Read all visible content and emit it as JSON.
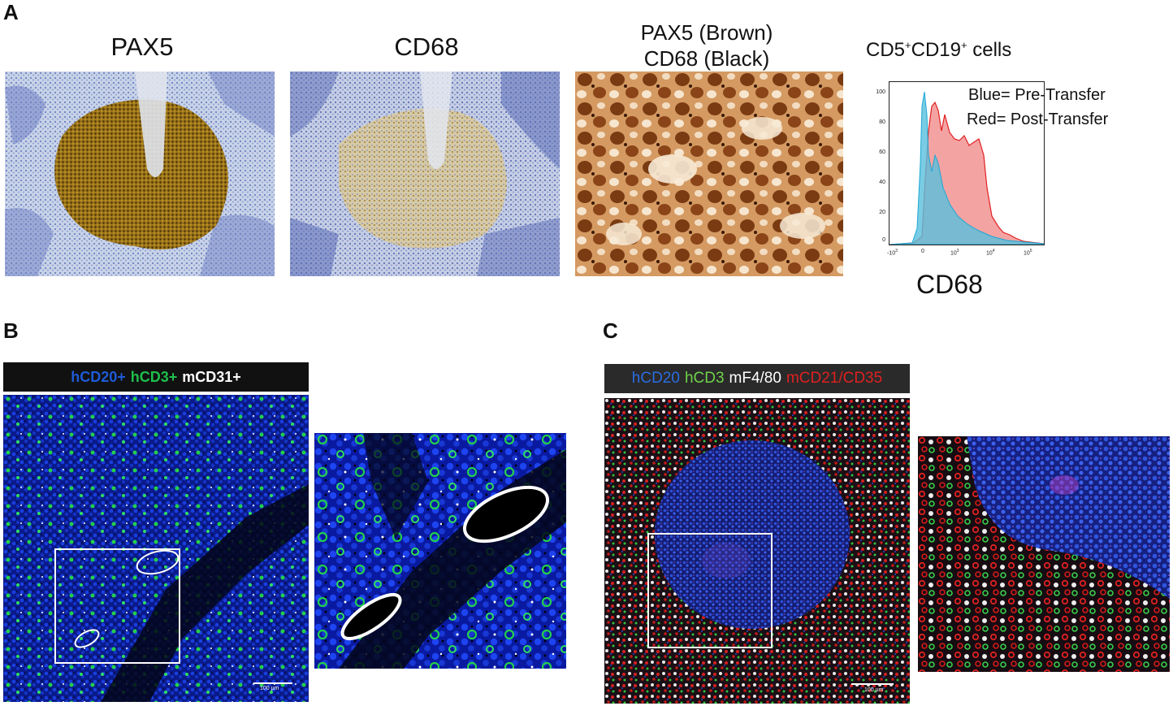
{
  "panels": {
    "a": {
      "letter": "A",
      "titles": {
        "pax5": "PAX5",
        "cd68": "CD68",
        "dual_line1": "PAX5 (Brown)",
        "dual_line2": "CD68 (Black)"
      },
      "flow": {
        "title_main": "CD5",
        "title_sup1": "+",
        "title_mid": "CD19",
        "title_sup2": "+",
        "title_tail": " cells",
        "legend_blue": "Blue= Pre-Transfer",
        "legend_red": "Red= Post-Transfer",
        "xlabel": "CD68",
        "y_ticks": [
          "100",
          "80",
          "60",
          "40",
          "20",
          "0"
        ],
        "x_ticks": [
          {
            "base": "-10",
            "exp": "3"
          },
          {
            "base": "0",
            "exp": ""
          },
          {
            "base": "10",
            "exp": "3"
          },
          {
            "base": "10",
            "exp": "4"
          },
          {
            "base": "10",
            "exp": "5"
          }
        ],
        "colors": {
          "pre": "#5ec8e0",
          "post": "#f39a9a",
          "post_line": "#e02020",
          "pre_line": "#1ca8d4"
        }
      }
    },
    "b": {
      "letter": "B",
      "legend": {
        "hcd20": "hCD20+",
        "hcd3": "hCD3+",
        "mcd31": "mCD31+"
      },
      "legend_colors": {
        "hcd20": "#1e5bd8",
        "hcd3": "#1fbf4a",
        "mcd31": "#ffffff"
      },
      "scale_bar": "100 µm"
    },
    "c": {
      "letter": "C",
      "legend": {
        "hcd20": "hCD20",
        "hcd3": "hCD3",
        "mf480": "mF4/80",
        "mcd21": "mCD21/CD35"
      },
      "legend_colors": {
        "hcd20": "#2a6de0",
        "hcd3": "#6fd24a",
        "mf480": "#ffffff",
        "mcd21": "#e02020"
      },
      "scale_bar": "100 µm"
    }
  }
}
